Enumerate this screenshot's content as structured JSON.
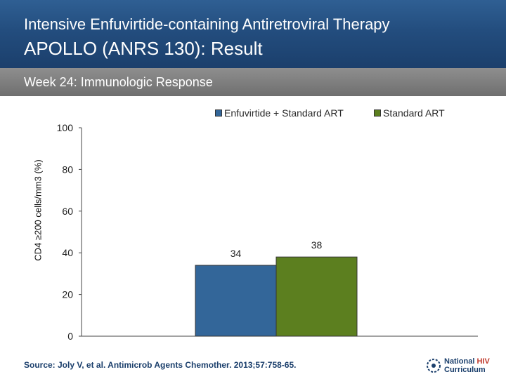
{
  "header": {
    "title_line1": "Intensive Enfuvirtide-containing Antiretroviral Therapy",
    "title_line2": "APOLLO (ANRS 130): Result"
  },
  "subheader": {
    "label": "Week 24: Immunologic Response"
  },
  "chart_data": {
    "type": "bar",
    "categories": [
      ""
    ],
    "series": [
      {
        "name": "Enfuvirtide + Standard ART",
        "values": [
          34
        ],
        "color": "#336699"
      },
      {
        "name": "Standard ART",
        "values": [
          38
        ],
        "color": "#5c7f1f"
      }
    ],
    "ylabel": "CD4 ≥200 cells/mm3 (%)",
    "ylim": [
      0,
      100
    ],
    "yticks": [
      0,
      20,
      40,
      60,
      80,
      100
    ],
    "legend_position": "top",
    "grid": false
  },
  "footer": {
    "source": "Source: Joly V, et al. Antimicrob Agents Chemother. 2013;57:758-65.",
    "logo_line1": "National",
    "logo_hiv": "HIV",
    "logo_line2": "Curriculum"
  }
}
